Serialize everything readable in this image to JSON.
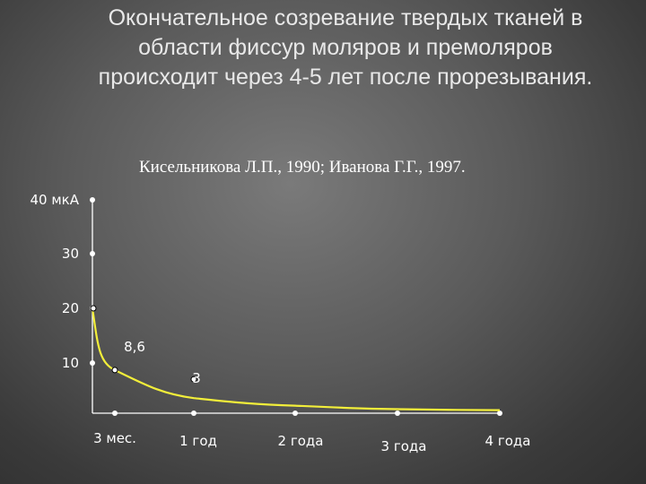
{
  "slide": {
    "title": "Окончательное созревание твердых тканей в области фиссур моляров и премоляров происходит через 4-5 лет после прорезывания.",
    "source": "Кисельникова Л.П., 1990; Иванова Г.Г., 1997."
  },
  "chart_data": {
    "type": "line",
    "title": "",
    "xlabel": "",
    "ylabel": "",
    "y_ticks": [
      {
        "value": 10,
        "label": "10"
      },
      {
        "value": 20,
        "label": "20"
      },
      {
        "value": 30,
        "label": "30"
      },
      {
        "value": 40,
        "label": "40 мкА"
      }
    ],
    "x_ticks": [
      {
        "value": 0,
        "label": ""
      },
      {
        "value": 1,
        "label": "3 мес."
      },
      {
        "value": 2,
        "label": "1 год"
      },
      {
        "value": 3,
        "label": "2 года"
      },
      {
        "value": 4,
        "label": "3 года"
      },
      {
        "value": 5,
        "label": "4 года"
      }
    ],
    "series": [
      {
        "x": [
          0,
          1,
          2,
          3,
          4,
          5
        ],
        "y": [
          20,
          8.6,
          3,
          1.5,
          0.8,
          0.6
        ],
        "point_labels": [
          "",
          "8,6",
          "3",
          "",
          "",
          ""
        ]
      }
    ],
    "ylim": [
      0,
      40
    ],
    "line_color": "#f2ee3a",
    "axis_color": "#ffffff",
    "grid": false
  }
}
